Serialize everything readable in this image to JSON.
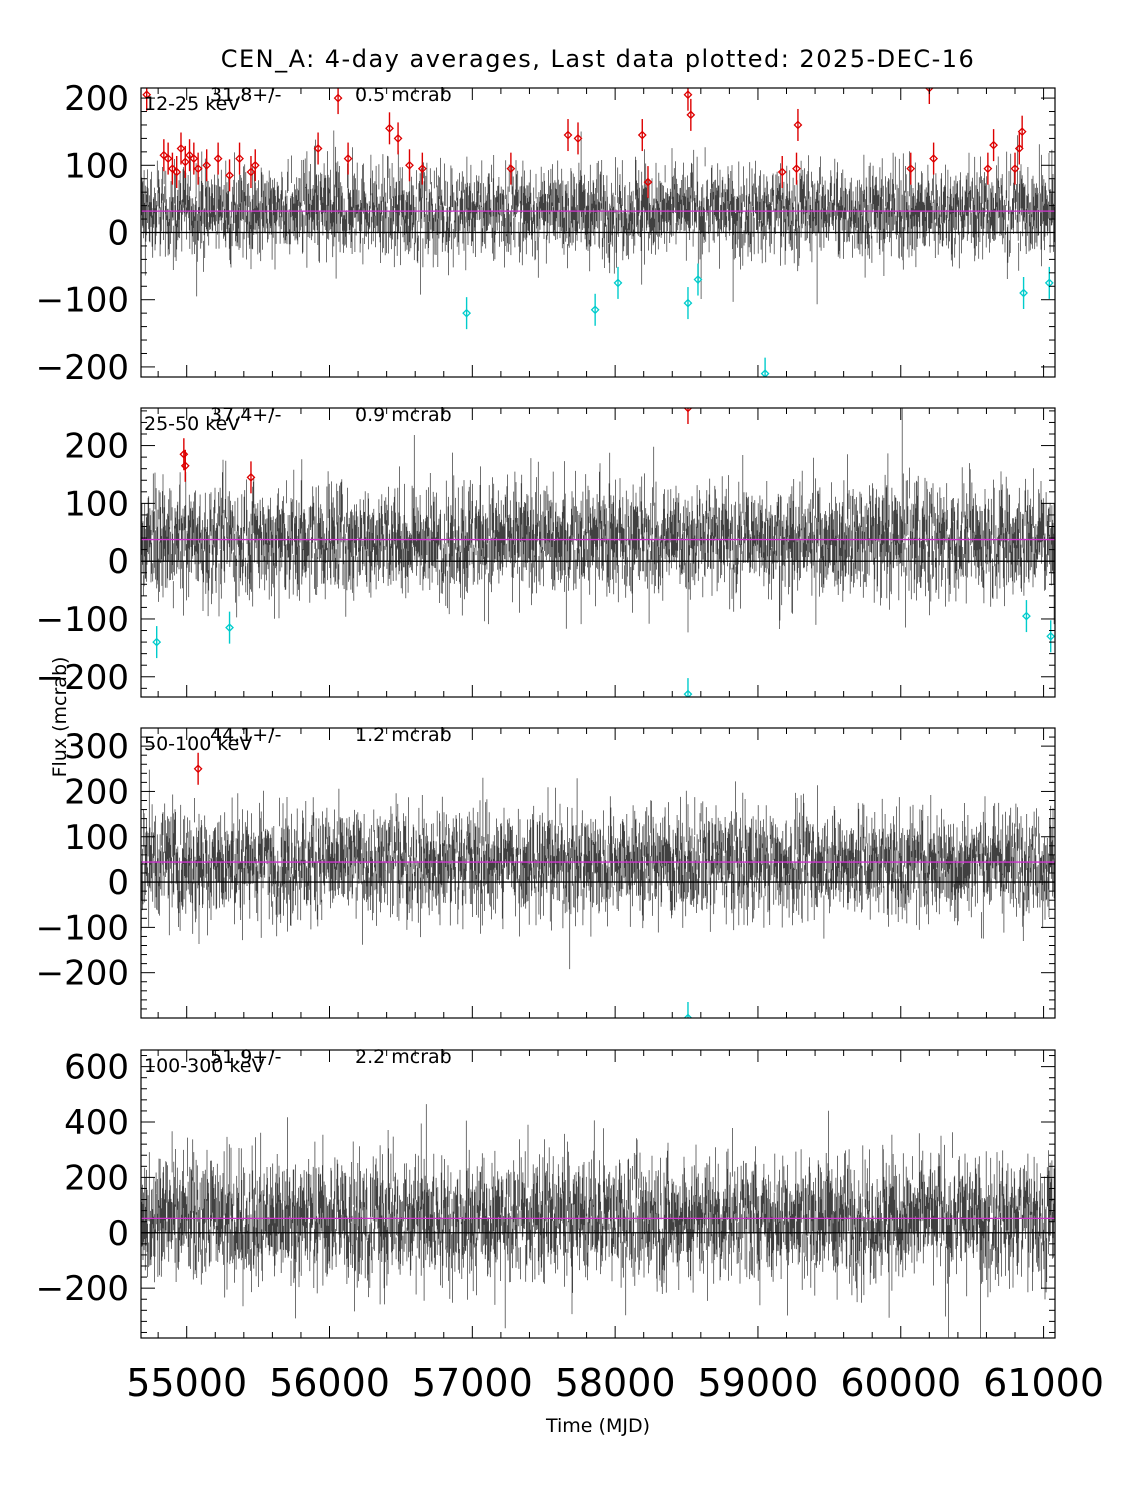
{
  "chart_data": {
    "type": "scatter",
    "title": "CEN_A:  4-day averages,  Last data plotted: 2025-DEC-16",
    "xlabel": "Time (MJD)",
    "ylabel": "Flux (mcrab)",
    "xlim": [
      54680,
      61080
    ],
    "xticks": [
      "55000",
      "56000",
      "57000",
      "58000",
      "59000",
      "60000",
      "61000"
    ],
    "xtick_values": [
      55000,
      56000,
      57000,
      58000,
      59000,
      60000,
      61000
    ],
    "colors": {
      "data": "#000000",
      "mean_line": "#cc33cc",
      "high_outlier": "#dd0000",
      "low_outlier": "#00cccc"
    },
    "panels": [
      {
        "band": "12-25 keV",
        "mean_prefix": "31.8+/-",
        "mean_err": "0.5 mcrab",
        "mean": 31.8,
        "ylim": [
          -215,
          215
        ],
        "yticks": [
          "200",
          "100",
          "0",
          "−100",
          "−200"
        ],
        "ytick_values": [
          200,
          100,
          0,
          -100,
          -200
        ],
        "noise_sigma": 32,
        "err_scale": 32,
        "high_outliers": [
          [
            54720,
            205
          ],
          [
            54840,
            115
          ],
          [
            54870,
            110
          ],
          [
            54900,
            95
          ],
          [
            54930,
            90
          ],
          [
            54960,
            125
          ],
          [
            54990,
            105
          ],
          [
            55020,
            115
          ],
          [
            55050,
            110
          ],
          [
            55080,
            95
          ],
          [
            55140,
            100
          ],
          [
            55220,
            110
          ],
          [
            55300,
            85
          ],
          [
            55370,
            110
          ],
          [
            55450,
            90
          ],
          [
            55480,
            100
          ],
          [
            55920,
            125
          ],
          [
            56060,
            200
          ],
          [
            56130,
            110
          ],
          [
            56420,
            155
          ],
          [
            56480,
            140
          ],
          [
            56560,
            100
          ],
          [
            56650,
            95
          ],
          [
            57270,
            95
          ],
          [
            57670,
            145
          ],
          [
            57740,
            140
          ],
          [
            58190,
            145
          ],
          [
            58230,
            75
          ],
          [
            58510,
            205
          ],
          [
            58530,
            175
          ],
          [
            59170,
            90
          ],
          [
            59270,
            95
          ],
          [
            59280,
            160
          ],
          [
            60070,
            95
          ],
          [
            60200,
            215
          ],
          [
            60230,
            110
          ],
          [
            60610,
            95
          ],
          [
            60650,
            130
          ],
          [
            60800,
            95
          ],
          [
            60830,
            125
          ],
          [
            60850,
            150
          ]
        ],
        "low_outliers": [
          [
            56960,
            -120
          ],
          [
            57860,
            -115
          ],
          [
            58020,
            -75
          ],
          [
            58510,
            -105
          ],
          [
            58580,
            -70
          ],
          [
            59050,
            -210
          ],
          [
            60860,
            -90
          ],
          [
            61040,
            -75
          ]
        ]
      },
      {
        "band": "25-50 keV",
        "mean_prefix": "37.4+/-",
        "mean_err": "0.9 mcrab",
        "mean": 37.4,
        "ylim": [
          -235,
          265
        ],
        "yticks": [
          "200",
          "100",
          "0",
          "−100",
          "−200"
        ],
        "ytick_values": [
          200,
          100,
          0,
          -100,
          -200
        ],
        "noise_sigma": 45,
        "err_scale": 45,
        "high_outliers": [
          [
            54980,
            185
          ],
          [
            54990,
            165
          ],
          [
            55450,
            145
          ],
          [
            58510,
            265
          ]
        ],
        "low_outliers": [
          [
            54790,
            -140
          ],
          [
            55300,
            -115
          ],
          [
            58510,
            -230
          ],
          [
            60880,
            -95
          ],
          [
            61050,
            -130
          ]
        ]
      },
      {
        "band": "50-100 keV",
        "mean_prefix": "44.1+/-",
        "mean_err": "1.2 mcrab",
        "mean": 44.1,
        "ylim": [
          -300,
          340
        ],
        "yticks": [
          "300",
          "200",
          "100",
          "0",
          "−100",
          "−200"
        ],
        "ytick_values": [
          300,
          200,
          100,
          0,
          -100,
          -200
        ],
        "noise_sigma": 55,
        "err_scale": 55,
        "high_outliers": [
          [
            55080,
            250
          ]
        ],
        "low_outliers": [
          [
            58510,
            -300
          ]
        ]
      },
      {
        "band": "100-300 keV",
        "mean_prefix": "51.9+/-",
        "mean_err": "2.2 mcrab",
        "mean": 51.9,
        "ylim": [
          -380,
          660
        ],
        "yticks": [
          "600",
          "400",
          "200",
          "0",
          "−200"
        ],
        "ytick_values": [
          600,
          400,
          200,
          0,
          -200
        ],
        "noise_sigma": 105,
        "err_scale": 105,
        "high_outliers": [],
        "low_outliers": []
      }
    ]
  }
}
